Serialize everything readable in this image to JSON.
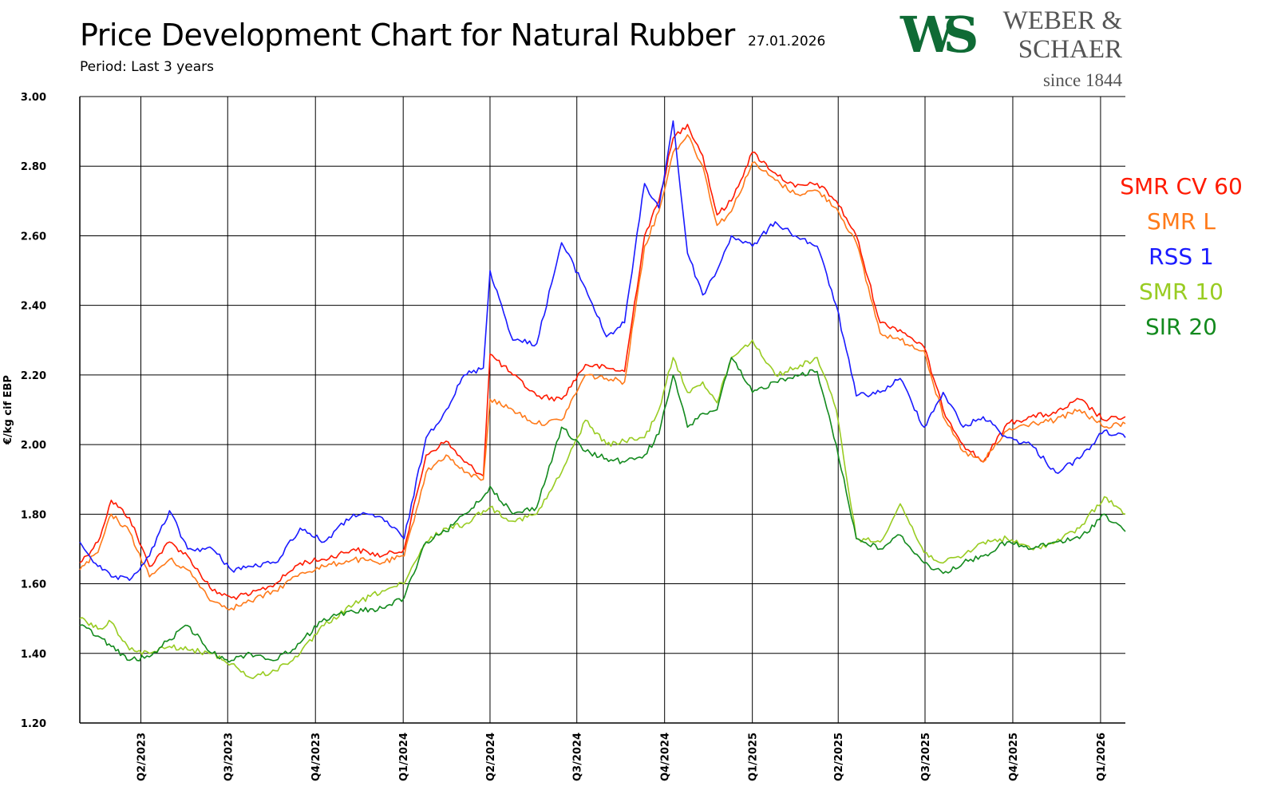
{
  "header": {
    "title": "Price Development Chart for Natural Rubber",
    "date": "27.01.2026",
    "period": "Period: Last 3 years"
  },
  "logo": {
    "mark": "WS",
    "name_line1": "WEBER &",
    "name_line2": "SCHAER",
    "since": "since 1844",
    "mark_color": "#0f6b35"
  },
  "chart_data": {
    "type": "line",
    "title": "Price Development Chart for Natural Rubber",
    "ylabel": "€/kg cif EBP",
    "xlabel": "",
    "ylim": [
      1.2,
      3.0
    ],
    "yticks": [
      "1.20",
      "1.40",
      "1.60",
      "1.80",
      "2.00",
      "2.20",
      "2.40",
      "2.60",
      "2.80",
      "3.00"
    ],
    "x_range": [
      "2023-01-27",
      "2026-01-27"
    ],
    "x_ticks": [
      {
        "label": "Q2/2023",
        "date": "2023-04-01"
      },
      {
        "label": "Q3/2023",
        "date": "2023-07-01"
      },
      {
        "label": "Q4/2023",
        "date": "2023-10-01"
      },
      {
        "label": "Q1/2024",
        "date": "2024-01-01"
      },
      {
        "label": "Q2/2024",
        "date": "2024-04-01"
      },
      {
        "label": "Q3/2024",
        "date": "2024-07-01"
      },
      {
        "label": "Q4/2024",
        "date": "2024-10-01"
      },
      {
        "label": "Q1/2025",
        "date": "2025-01-01"
      },
      {
        "label": "Q2/2025",
        "date": "2025-04-01"
      },
      {
        "label": "Q3/2025",
        "date": "2025-07-01"
      },
      {
        "label": "Q4/2025",
        "date": "2025-10-01"
      },
      {
        "label": "Q1/2026",
        "date": "2026-01-01"
      }
    ],
    "grid": true,
    "legend_position": "right",
    "series": [
      {
        "name": "SMR CV 60",
        "color": "#ff1a00",
        "x": [
          "2023-01-27",
          "2023-02-15",
          "2023-03-01",
          "2023-03-20",
          "2023-04-10",
          "2023-05-01",
          "2023-05-20",
          "2023-06-15",
          "2023-07-05",
          "2023-07-25",
          "2023-08-20",
          "2023-09-15",
          "2023-10-10",
          "2023-11-10",
          "2023-12-10",
          "2024-01-02",
          "2024-01-25",
          "2024-02-15",
          "2024-03-05",
          "2024-03-25",
          "2024-04-01",
          "2024-04-25",
          "2024-05-20",
          "2024-06-15",
          "2024-07-10",
          "2024-08-01",
          "2024-08-20",
          "2024-09-10",
          "2024-09-25",
          "2024-10-10",
          "2024-10-25",
          "2024-11-10",
          "2024-11-25",
          "2024-12-10",
          "2025-01-01",
          "2025-01-25",
          "2025-02-15",
          "2025-03-10",
          "2025-03-30",
          "2025-04-20",
          "2025-05-15",
          "2025-06-05",
          "2025-06-30",
          "2025-07-20",
          "2025-08-10",
          "2025-08-31",
          "2025-09-25",
          "2025-10-20",
          "2025-11-15",
          "2025-12-10",
          "2026-01-05",
          "2026-01-27"
        ],
        "y": [
          1.66,
          1.72,
          1.84,
          1.79,
          1.65,
          1.72,
          1.68,
          1.58,
          1.56,
          1.57,
          1.6,
          1.66,
          1.67,
          1.7,
          1.68,
          1.7,
          1.97,
          2.01,
          1.95,
          1.91,
          2.26,
          2.2,
          2.14,
          2.13,
          2.23,
          2.22,
          2.21,
          2.6,
          2.7,
          2.88,
          2.92,
          2.83,
          2.66,
          2.7,
          2.84,
          2.78,
          2.74,
          2.75,
          2.7,
          2.6,
          2.35,
          2.33,
          2.28,
          2.1,
          2.0,
          1.95,
          2.06,
          2.08,
          2.09,
          2.13,
          2.07,
          2.08
        ]
      },
      {
        "name": "SMR L",
        "color": "#ff7a1a",
        "x": [
          "2023-01-27",
          "2023-02-15",
          "2023-03-01",
          "2023-03-20",
          "2023-04-10",
          "2023-05-01",
          "2023-05-20",
          "2023-06-15",
          "2023-07-05",
          "2023-07-25",
          "2023-08-20",
          "2023-09-15",
          "2023-10-10",
          "2023-11-10",
          "2023-12-10",
          "2024-01-02",
          "2024-01-25",
          "2024-02-15",
          "2024-03-05",
          "2024-03-25",
          "2024-04-01",
          "2024-04-25",
          "2024-05-20",
          "2024-06-15",
          "2024-07-10",
          "2024-08-01",
          "2024-08-20",
          "2024-09-10",
          "2024-09-25",
          "2024-10-10",
          "2024-10-25",
          "2024-11-10",
          "2024-11-25",
          "2024-12-10",
          "2025-01-01",
          "2025-01-25",
          "2025-02-15",
          "2025-03-10",
          "2025-03-30",
          "2025-04-20",
          "2025-05-15",
          "2025-06-05",
          "2025-06-30",
          "2025-07-20",
          "2025-08-10",
          "2025-08-31",
          "2025-09-25",
          "2025-10-20",
          "2025-11-15",
          "2025-12-10",
          "2026-01-05",
          "2026-01-27"
        ],
        "y": [
          1.64,
          1.69,
          1.8,
          1.75,
          1.62,
          1.67,
          1.64,
          1.55,
          1.53,
          1.55,
          1.58,
          1.63,
          1.65,
          1.67,
          1.66,
          1.68,
          1.92,
          1.97,
          1.92,
          1.9,
          2.13,
          2.1,
          2.06,
          2.07,
          2.2,
          2.19,
          2.18,
          2.57,
          2.67,
          2.84,
          2.89,
          2.8,
          2.63,
          2.67,
          2.81,
          2.76,
          2.72,
          2.73,
          2.68,
          2.58,
          2.32,
          2.3,
          2.27,
          2.08,
          1.98,
          1.95,
          2.04,
          2.06,
          2.07,
          2.1,
          2.05,
          2.06
        ]
      },
      {
        "name": "RSS 1",
        "color": "#1a1aff",
        "x": [
          "2023-01-27",
          "2023-02-15",
          "2023-03-01",
          "2023-03-20",
          "2023-04-10",
          "2023-05-01",
          "2023-05-20",
          "2023-06-15",
          "2023-07-05",
          "2023-07-25",
          "2023-08-20",
          "2023-09-15",
          "2023-10-10",
          "2023-11-10",
          "2023-12-10",
          "2024-01-02",
          "2024-01-25",
          "2024-02-15",
          "2024-03-05",
          "2024-03-25",
          "2024-04-01",
          "2024-04-25",
          "2024-05-20",
          "2024-06-15",
          "2024-07-10",
          "2024-08-01",
          "2024-08-20",
          "2024-09-10",
          "2024-09-25",
          "2024-10-10",
          "2024-10-25",
          "2024-11-10",
          "2024-11-25",
          "2024-12-10",
          "2025-01-01",
          "2025-01-25",
          "2025-02-15",
          "2025-03-10",
          "2025-03-30",
          "2025-04-20",
          "2025-05-15",
          "2025-06-05",
          "2025-06-30",
          "2025-07-20",
          "2025-08-10",
          "2025-08-31",
          "2025-09-25",
          "2025-10-20",
          "2025-11-15",
          "2025-12-10",
          "2026-01-05",
          "2026-01-27"
        ],
        "y": [
          1.72,
          1.65,
          1.62,
          1.61,
          1.68,
          1.81,
          1.7,
          1.7,
          1.64,
          1.65,
          1.66,
          1.76,
          1.72,
          1.8,
          1.79,
          1.73,
          2.02,
          2.1,
          2.2,
          2.22,
          2.5,
          2.3,
          2.29,
          2.58,
          2.45,
          2.31,
          2.35,
          2.75,
          2.68,
          2.93,
          2.55,
          2.43,
          2.5,
          2.6,
          2.57,
          2.64,
          2.6,
          2.57,
          2.4,
          2.14,
          2.15,
          2.19,
          2.05,
          2.15,
          2.05,
          2.08,
          2.02,
          2.0,
          1.92,
          1.96,
          2.04,
          2.02
        ]
      },
      {
        "name": "SMR 10",
        "color": "#99cc22",
        "x": [
          "2023-01-27",
          "2023-02-15",
          "2023-03-01",
          "2023-03-20",
          "2023-04-10",
          "2023-05-01",
          "2023-05-20",
          "2023-06-15",
          "2023-07-05",
          "2023-07-25",
          "2023-08-20",
          "2023-09-15",
          "2023-10-10",
          "2023-11-10",
          "2023-12-10",
          "2024-01-02",
          "2024-01-25",
          "2024-02-15",
          "2024-03-05",
          "2024-03-25",
          "2024-04-01",
          "2024-04-25",
          "2024-05-20",
          "2024-06-15",
          "2024-07-10",
          "2024-08-01",
          "2024-08-20",
          "2024-09-10",
          "2024-09-25",
          "2024-10-10",
          "2024-10-25",
          "2024-11-10",
          "2024-11-25",
          "2024-12-10",
          "2025-01-01",
          "2025-01-25",
          "2025-02-15",
          "2025-03-10",
          "2025-03-30",
          "2025-04-20",
          "2025-05-15",
          "2025-06-05",
          "2025-06-30",
          "2025-07-20",
          "2025-08-10",
          "2025-08-31",
          "2025-09-25",
          "2025-10-20",
          "2025-11-15",
          "2025-12-10",
          "2026-01-05",
          "2026-01-27"
        ],
        "y": [
          1.5,
          1.47,
          1.49,
          1.41,
          1.4,
          1.42,
          1.41,
          1.4,
          1.37,
          1.33,
          1.35,
          1.4,
          1.48,
          1.54,
          1.58,
          1.6,
          1.72,
          1.76,
          1.77,
          1.81,
          1.82,
          1.78,
          1.8,
          1.92,
          2.07,
          2.0,
          2.01,
          2.02,
          2.1,
          2.25,
          2.15,
          2.18,
          2.12,
          2.25,
          2.3,
          2.2,
          2.22,
          2.25,
          2.1,
          1.73,
          1.72,
          1.83,
          1.69,
          1.66,
          1.68,
          1.72,
          1.73,
          1.7,
          1.72,
          1.76,
          1.85,
          1.8
        ]
      },
      {
        "name": "SIR 20",
        "color": "#138a1e",
        "x": [
          "2023-01-27",
          "2023-02-15",
          "2023-03-01",
          "2023-03-20",
          "2023-04-10",
          "2023-05-01",
          "2023-05-20",
          "2023-06-15",
          "2023-07-05",
          "2023-07-25",
          "2023-08-20",
          "2023-09-15",
          "2023-10-10",
          "2023-11-10",
          "2023-12-10",
          "2024-01-02",
          "2024-01-25",
          "2024-02-15",
          "2024-03-05",
          "2024-03-25",
          "2024-04-01",
          "2024-04-25",
          "2024-05-20",
          "2024-06-15",
          "2024-07-10",
          "2024-08-01",
          "2024-08-20",
          "2024-09-10",
          "2024-09-25",
          "2024-10-10",
          "2024-10-25",
          "2024-11-10",
          "2024-11-25",
          "2024-12-10",
          "2025-01-01",
          "2025-01-25",
          "2025-02-15",
          "2025-03-10",
          "2025-03-30",
          "2025-04-20",
          "2025-05-15",
          "2025-06-05",
          "2025-06-30",
          "2025-07-20",
          "2025-08-10",
          "2025-08-31",
          "2025-09-25",
          "2025-10-20",
          "2025-11-15",
          "2025-12-10",
          "2026-01-05",
          "2026-01-27"
        ],
        "y": [
          1.48,
          1.45,
          1.42,
          1.38,
          1.39,
          1.44,
          1.48,
          1.4,
          1.38,
          1.4,
          1.38,
          1.43,
          1.5,
          1.52,
          1.53,
          1.56,
          1.72,
          1.75,
          1.8,
          1.85,
          1.88,
          1.8,
          1.82,
          2.05,
          1.98,
          1.96,
          1.95,
          1.97,
          2.03,
          2.2,
          2.05,
          2.09,
          2.1,
          2.25,
          2.15,
          2.18,
          2.2,
          2.21,
          2.0,
          1.73,
          1.7,
          1.74,
          1.66,
          1.63,
          1.66,
          1.68,
          1.72,
          1.7,
          1.72,
          1.73,
          1.8,
          1.75
        ]
      }
    ]
  }
}
